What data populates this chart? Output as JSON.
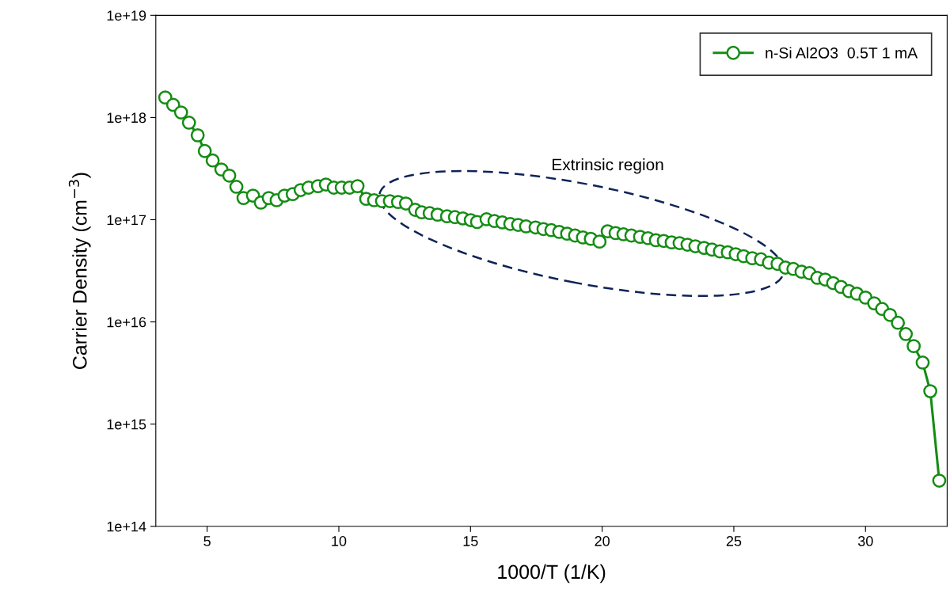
{
  "chart_data": {
    "type": "line",
    "xlabel": "1000/T (1/K)",
    "ylabel": "Carrier Density (cm$^{−3}$)",
    "log": "y",
    "xlim": [
      3.05,
      33.1
    ],
    "xticks": [
      5,
      10,
      15,
      20,
      25,
      30
    ],
    "ylim": [
      100000000000000.0,
      1e+19
    ],
    "yticks": [
      {
        "value": 100000000000000.0,
        "label": "1e+14"
      },
      {
        "value": 1000000000000000.0,
        "label": "1e+15"
      },
      {
        "value": 1e+16,
        "label": "1e+16"
      },
      {
        "value": 1e+17,
        "label": "1e+17"
      },
      {
        "value": 1e+18,
        "label": "1e+18"
      },
      {
        "value": 1e+19,
        "label": "1e+19"
      }
    ],
    "grid": false,
    "legend": "top right",
    "marker": "circle",
    "line_style": "solid",
    "annotations": [
      "Extrinsic region"
    ],
    "series": [
      {
        "name": "n-Si Al2O3  0.5T 1 mA",
        "color": "#148c14",
        "x": [
          3.41,
          3.71,
          4.01,
          4.31,
          4.64,
          4.91,
          5.21,
          5.54,
          5.84,
          6.11,
          6.38,
          6.74,
          7.04,
          7.34,
          7.64,
          7.94,
          8.25,
          8.55,
          8.85,
          9.21,
          9.51,
          9.81,
          10.11,
          10.41,
          10.71,
          11.04,
          11.34,
          11.64,
          11.94,
          12.25,
          12.55,
          12.9,
          13.15,
          13.45,
          13.75,
          14.11,
          14.41,
          14.71,
          15.01,
          15.25,
          15.61,
          15.91,
          16.21,
          16.51,
          16.81,
          17.11,
          17.47,
          17.77,
          18.07,
          18.37,
          18.67,
          18.97,
          19.27,
          19.57,
          19.9,
          20.21,
          20.51,
          20.81,
          21.11,
          21.44,
          21.74,
          22.04,
          22.34,
          22.64,
          22.94,
          23.24,
          23.54,
          23.87,
          24.17,
          24.47,
          24.77,
          25.07,
          25.37,
          25.7,
          26.03,
          26.33,
          26.66,
          26.96,
          27.26,
          27.57,
          27.87,
          28.17,
          28.47,
          28.77,
          29.07,
          29.37,
          29.67,
          30.0,
          30.33,
          30.63,
          30.93,
          31.23,
          31.53,
          31.83,
          32.17,
          32.46,
          32.8
        ],
        "values": [
          1.57e+18,
          1.33e+18,
          1.12e+18,
          8.9e+17,
          6.7e+17,
          4.7e+17,
          3.8e+17,
          3.1e+17,
          2.7e+17,
          2.1e+17,
          1.63e+17,
          1.72e+17,
          1.47e+17,
          1.63e+17,
          1.55e+17,
          1.72e+17,
          1.78e+17,
          1.95e+17,
          2.06e+17,
          2.13e+17,
          2.21e+17,
          2.06e+17,
          2.06e+17,
          2.06e+17,
          2.13e+17,
          1.6e+17,
          1.55e+17,
          1.52e+17,
          1.52e+17,
          1.49e+17,
          1.44e+17,
          1.25e+17,
          1.18e+17,
          1.16e+17,
          1.12e+17,
          1.08e+17,
          1.06e+17,
          1.03e+17,
          9.9e+16,
          9.5e+16,
          1.01e+17,
          9.7e+16,
          9.4e+16,
          9.1e+16,
          8.9e+16,
          8.6e+16,
          8.4e+16,
          8.1e+16,
          7.9e+16,
          7.6e+16,
          7.3e+16,
          7e+16,
          6.7e+16,
          6.5e+16,
          6.1e+16,
          7.7e+16,
          7.4e+16,
          7.2e+16,
          7e+16,
          6.8e+16,
          6.6e+16,
          6.3e+16,
          6.2e+16,
          6e+16,
          5.9e+16,
          5.7e+16,
          5.5e+16,
          5.3e+16,
          5.1e+16,
          4.9e+16,
          4.8e+16,
          4.6e+16,
          4.4e+16,
          4.2e+16,
          4.1e+16,
          3.8e+16,
          3.7e+16,
          3.4e+16,
          3.3e+16,
          3.1e+16,
          3e+16,
          2.7e+16,
          2.6e+16,
          2.4e+16,
          2.2e+16,
          2e+16,
          1.89e+16,
          1.73e+16,
          1.52e+16,
          1.34e+16,
          1.17e+16,
          9800000000000000.0,
          7600000000000000.0,
          5800000000000000.0,
          4000000000000000.0,
          2100000000000000.0,
          280000000000000.0
        ]
      }
    ]
  }
}
